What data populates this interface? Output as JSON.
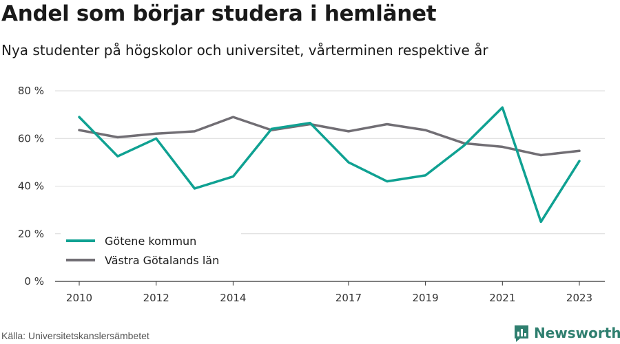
{
  "title": "Andel som börjar studera i hemlänet",
  "subtitle": "Nya studenter på högskolor och universitet, vårterminen respektive år",
  "source": "Källa: Universitetskanslersämbetet",
  "brand": "Newsworthy",
  "chart_data": {
    "type": "line",
    "x": [
      2010,
      2011,
      2012,
      2013,
      2014,
      2015,
      2016,
      2017,
      2018,
      2019,
      2020,
      2021,
      2022,
      2023
    ],
    "x_ticks": [
      "2010",
      "2012",
      "2014",
      "2017",
      "2019",
      "2021",
      "2023"
    ],
    "x_tick_values": [
      2010,
      2012,
      2014,
      2017,
      2019,
      2021,
      2023
    ],
    "y_ticks": [
      "0 %",
      "20 %",
      "40 %",
      "60 %",
      "80 %"
    ],
    "y_tick_values": [
      0,
      20,
      40,
      60,
      80
    ],
    "ylim": [
      0,
      80
    ],
    "grid": true,
    "legend_position": "bottom-left",
    "series": [
      {
        "name": "Götene kommun",
        "color": "#0fa192",
        "values": [
          69,
          52.5,
          60,
          39,
          44,
          64,
          66.5,
          50,
          42,
          44.5,
          57,
          73,
          25,
          50.5
        ]
      },
      {
        "name": "Västra Götalands län",
        "color": "#716e74",
        "values": [
          63.5,
          60.5,
          62,
          63,
          69,
          63.5,
          66,
          63,
          66,
          63.5,
          58,
          56.5,
          53,
          54.8
        ]
      }
    ]
  }
}
